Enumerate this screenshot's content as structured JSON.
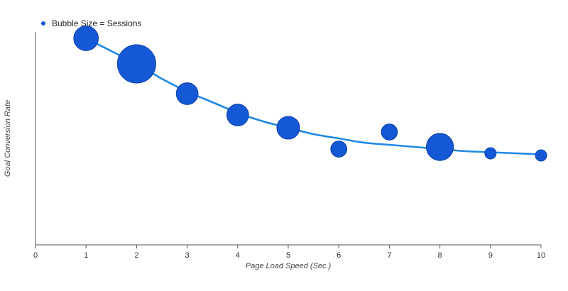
{
  "chart_data": {
    "type": "scatter",
    "subtype": "bubble",
    "xlabel": "Page Load Speed (Sec.)",
    "ylabel": "Goal Conversion Rate",
    "xlim": [
      0,
      10
    ],
    "ylim": [
      0,
      1
    ],
    "x_ticks": [
      "0",
      "1",
      "2",
      "3",
      "4",
      "5",
      "6",
      "7",
      "8",
      "9",
      "10"
    ],
    "y_ticks_visible": false,
    "grid": false,
    "legend": {
      "label": "Bubble Size = Sessions",
      "position": "top-left"
    },
    "colors": {
      "bubble_fill": "#1558d6",
      "bubble_stroke": "#0d3fa8",
      "trend_line": "#1e88e5",
      "axis": "#555555"
    },
    "series": [
      {
        "points": [
          {
            "x": 1,
            "y": 0.97,
            "size": 14
          },
          {
            "x": 2,
            "y": 0.85,
            "size": 34
          },
          {
            "x": 3,
            "y": 0.71,
            "size": 11
          },
          {
            "x": 4,
            "y": 0.61,
            "size": 11
          },
          {
            "x": 5,
            "y": 0.55,
            "size": 12
          },
          {
            "x": 6,
            "y": 0.45,
            "size": 6
          },
          {
            "x": 7,
            "y": 0.53,
            "size": 6
          },
          {
            "x": 8,
            "y": 0.46,
            "size": 17
          },
          {
            "x": 9,
            "y": 0.43,
            "size": 3
          },
          {
            "x": 10,
            "y": 0.42,
            "size": 3
          }
        ]
      }
    ],
    "trendline": {
      "x": [
        1,
        1.5,
        2,
        2.5,
        3,
        3.5,
        4,
        4.5,
        5,
        5.5,
        6,
        6.5,
        7,
        7.5,
        8,
        8.5,
        9,
        9.5,
        10
      ],
      "y": [
        0.97,
        0.91,
        0.85,
        0.78,
        0.72,
        0.67,
        0.62,
        0.58,
        0.55,
        0.52,
        0.5,
        0.48,
        0.47,
        0.46,
        0.45,
        0.44,
        0.435,
        0.43,
        0.425
      ]
    }
  }
}
